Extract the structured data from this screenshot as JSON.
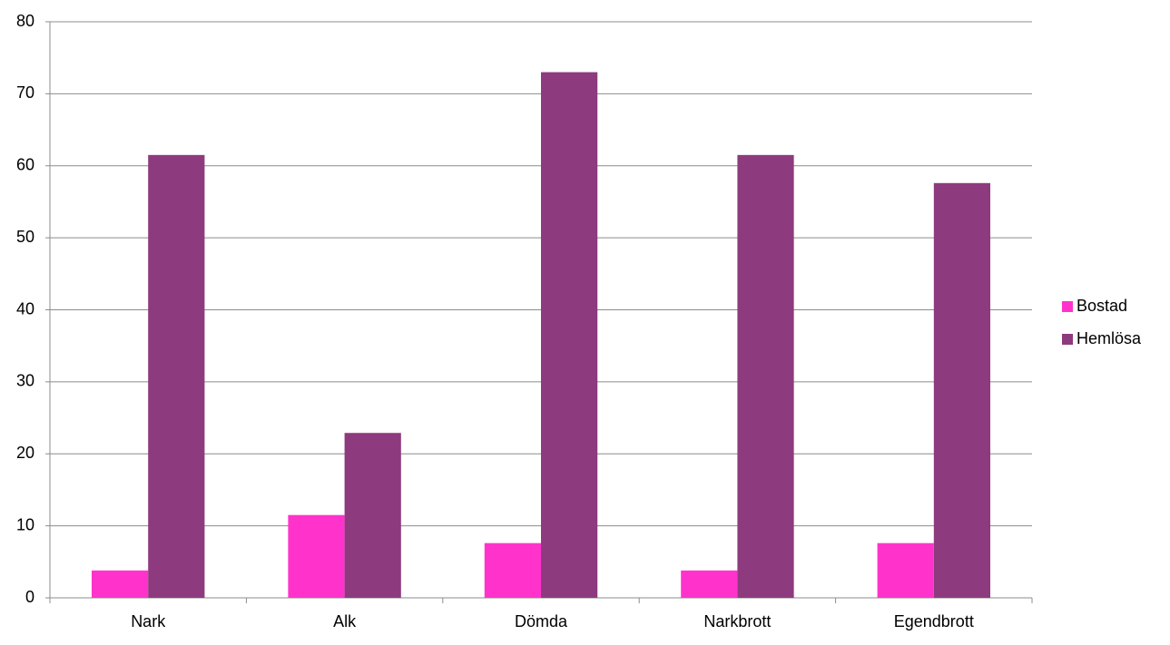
{
  "chart_data": {
    "type": "bar",
    "categories": [
      "Nark",
      "Alk",
      "Dömda",
      "Narkbrott",
      "Egendbrott"
    ],
    "series": [
      {
        "name": "Bostad",
        "color": "#ff33cc",
        "values": [
          3.8,
          11.5,
          7.6,
          3.8,
          7.6
        ]
      },
      {
        "name": "Hemlösa",
        "color": "#8e3a7e",
        "values": [
          61.5,
          22.9,
          73.0,
          61.5,
          57.6
        ]
      }
    ],
    "ylim": [
      0,
      80
    ],
    "yticks": [
      0,
      10,
      20,
      30,
      40,
      50,
      60,
      70,
      80
    ],
    "grid": true,
    "legend": "right"
  }
}
